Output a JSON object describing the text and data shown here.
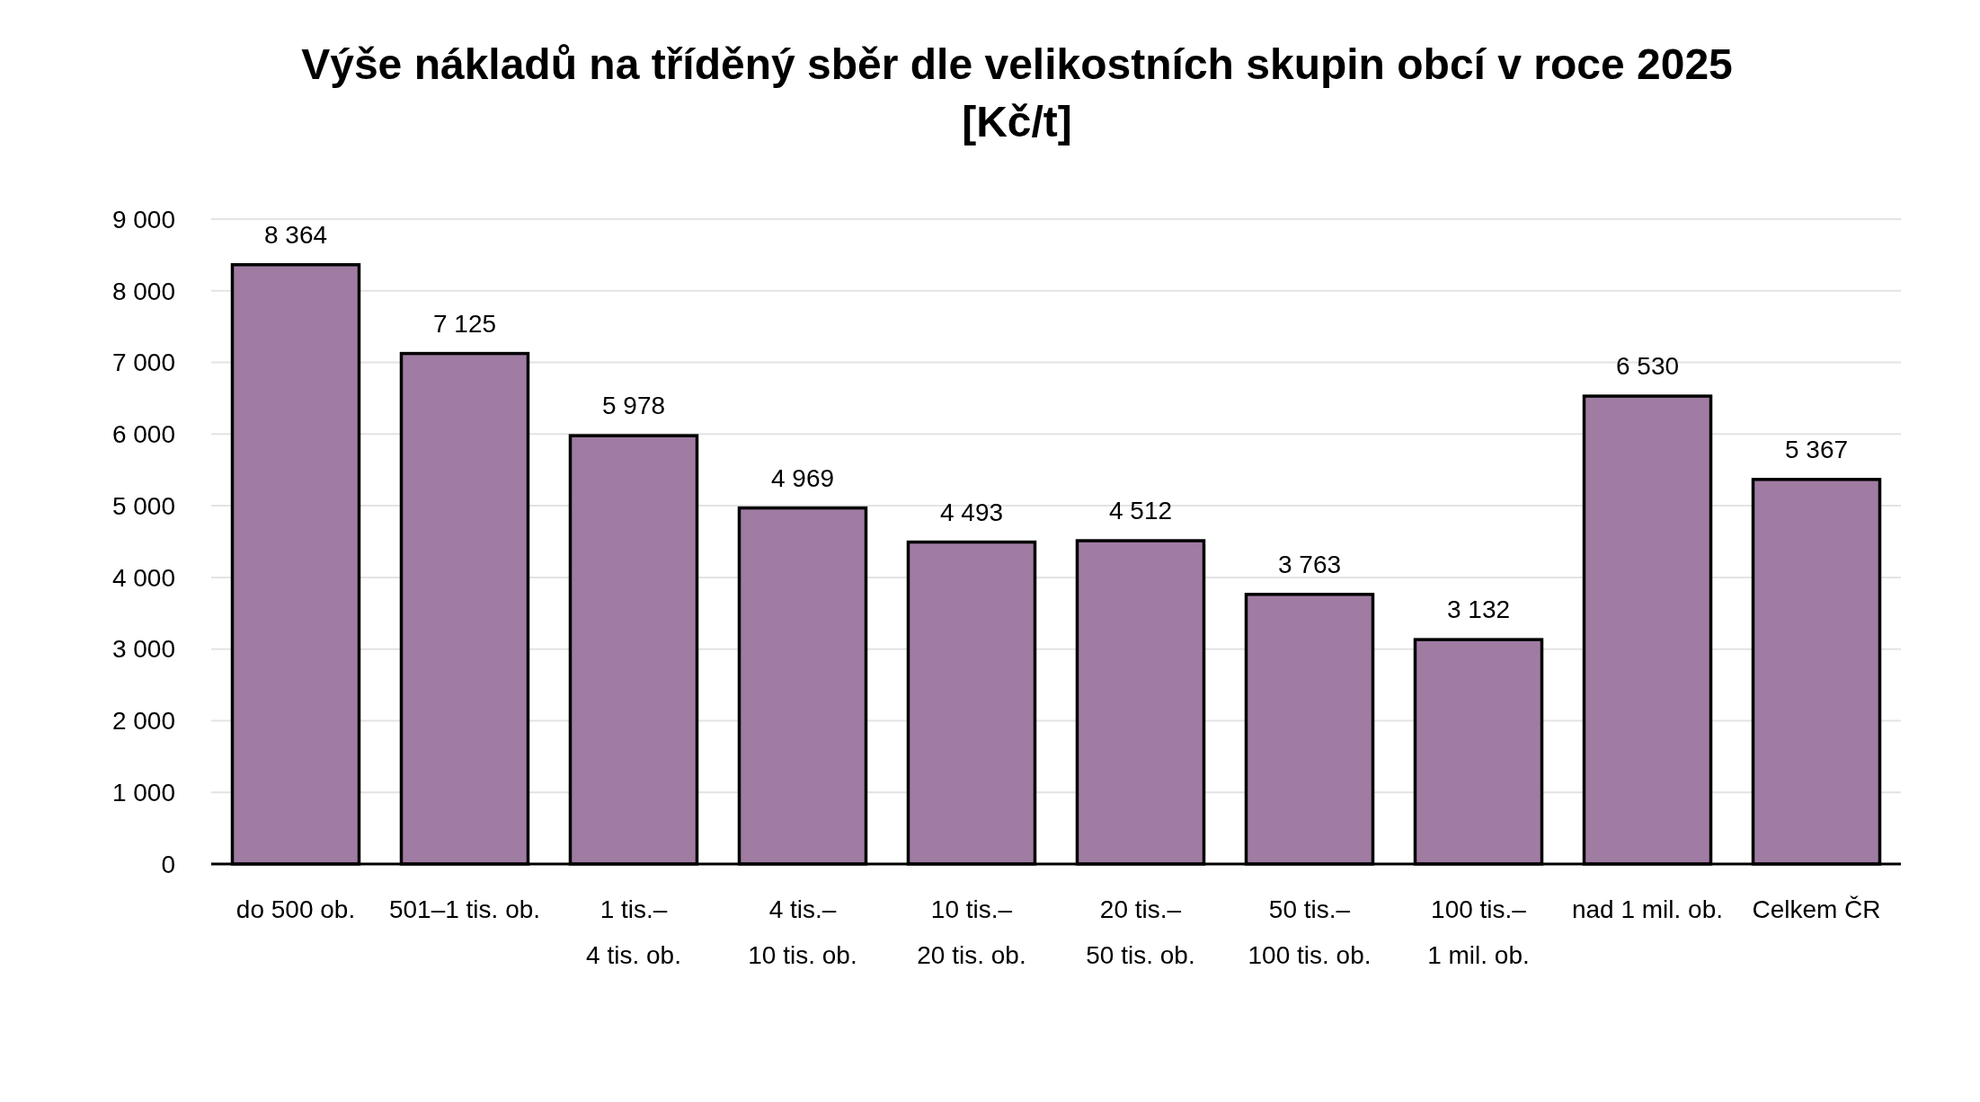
{
  "chart_data": {
    "type": "bar",
    "title": "Výše nákladů na tříděný sběr dle velikostních skupin obcí v roce 2025 [Kč/t]",
    "categories": [
      "do 500 ob.",
      "501–1 tis. ob.",
      "1 tis.– 4 tis. ob.",
      "4 tis.– 10 tis. ob.",
      "10 tis.– 20 tis. ob.",
      "20 tis.– 50 tis. ob.",
      "50 tis.– 100 tis. ob.",
      "100 tis.– 1 mil. ob.",
      "nad 1 mil. ob.",
      "Celkem ČR"
    ],
    "values": [
      8364,
      7125,
      5978,
      4969,
      4493,
      4512,
      3763,
      3132,
      6530,
      5367
    ],
    "value_labels": [
      "8 364",
      "7 125",
      "5 978",
      "4 969",
      "4 493",
      "4 512",
      "3 763",
      "3 132",
      "6 530",
      "5 367"
    ],
    "color": "#a07ca3",
    "ylim": [
      0,
      9000
    ],
    "yticks": [
      {
        "value": 0,
        "label": "0"
      },
      {
        "value": 1000,
        "label": "1 000"
      },
      {
        "value": 2000,
        "label": "2 000"
      },
      {
        "value": 3000,
        "label": "3 000"
      },
      {
        "value": 4000,
        "label": "4 000"
      },
      {
        "value": 5000,
        "label": "5 000"
      },
      {
        "value": 6000,
        "label": "6 000"
      },
      {
        "value": 7000,
        "label": "7 000"
      },
      {
        "value": 8000,
        "label": "8 000"
      },
      {
        "value": 9000,
        "label": "9 000"
      }
    ],
    "grid": "y"
  }
}
